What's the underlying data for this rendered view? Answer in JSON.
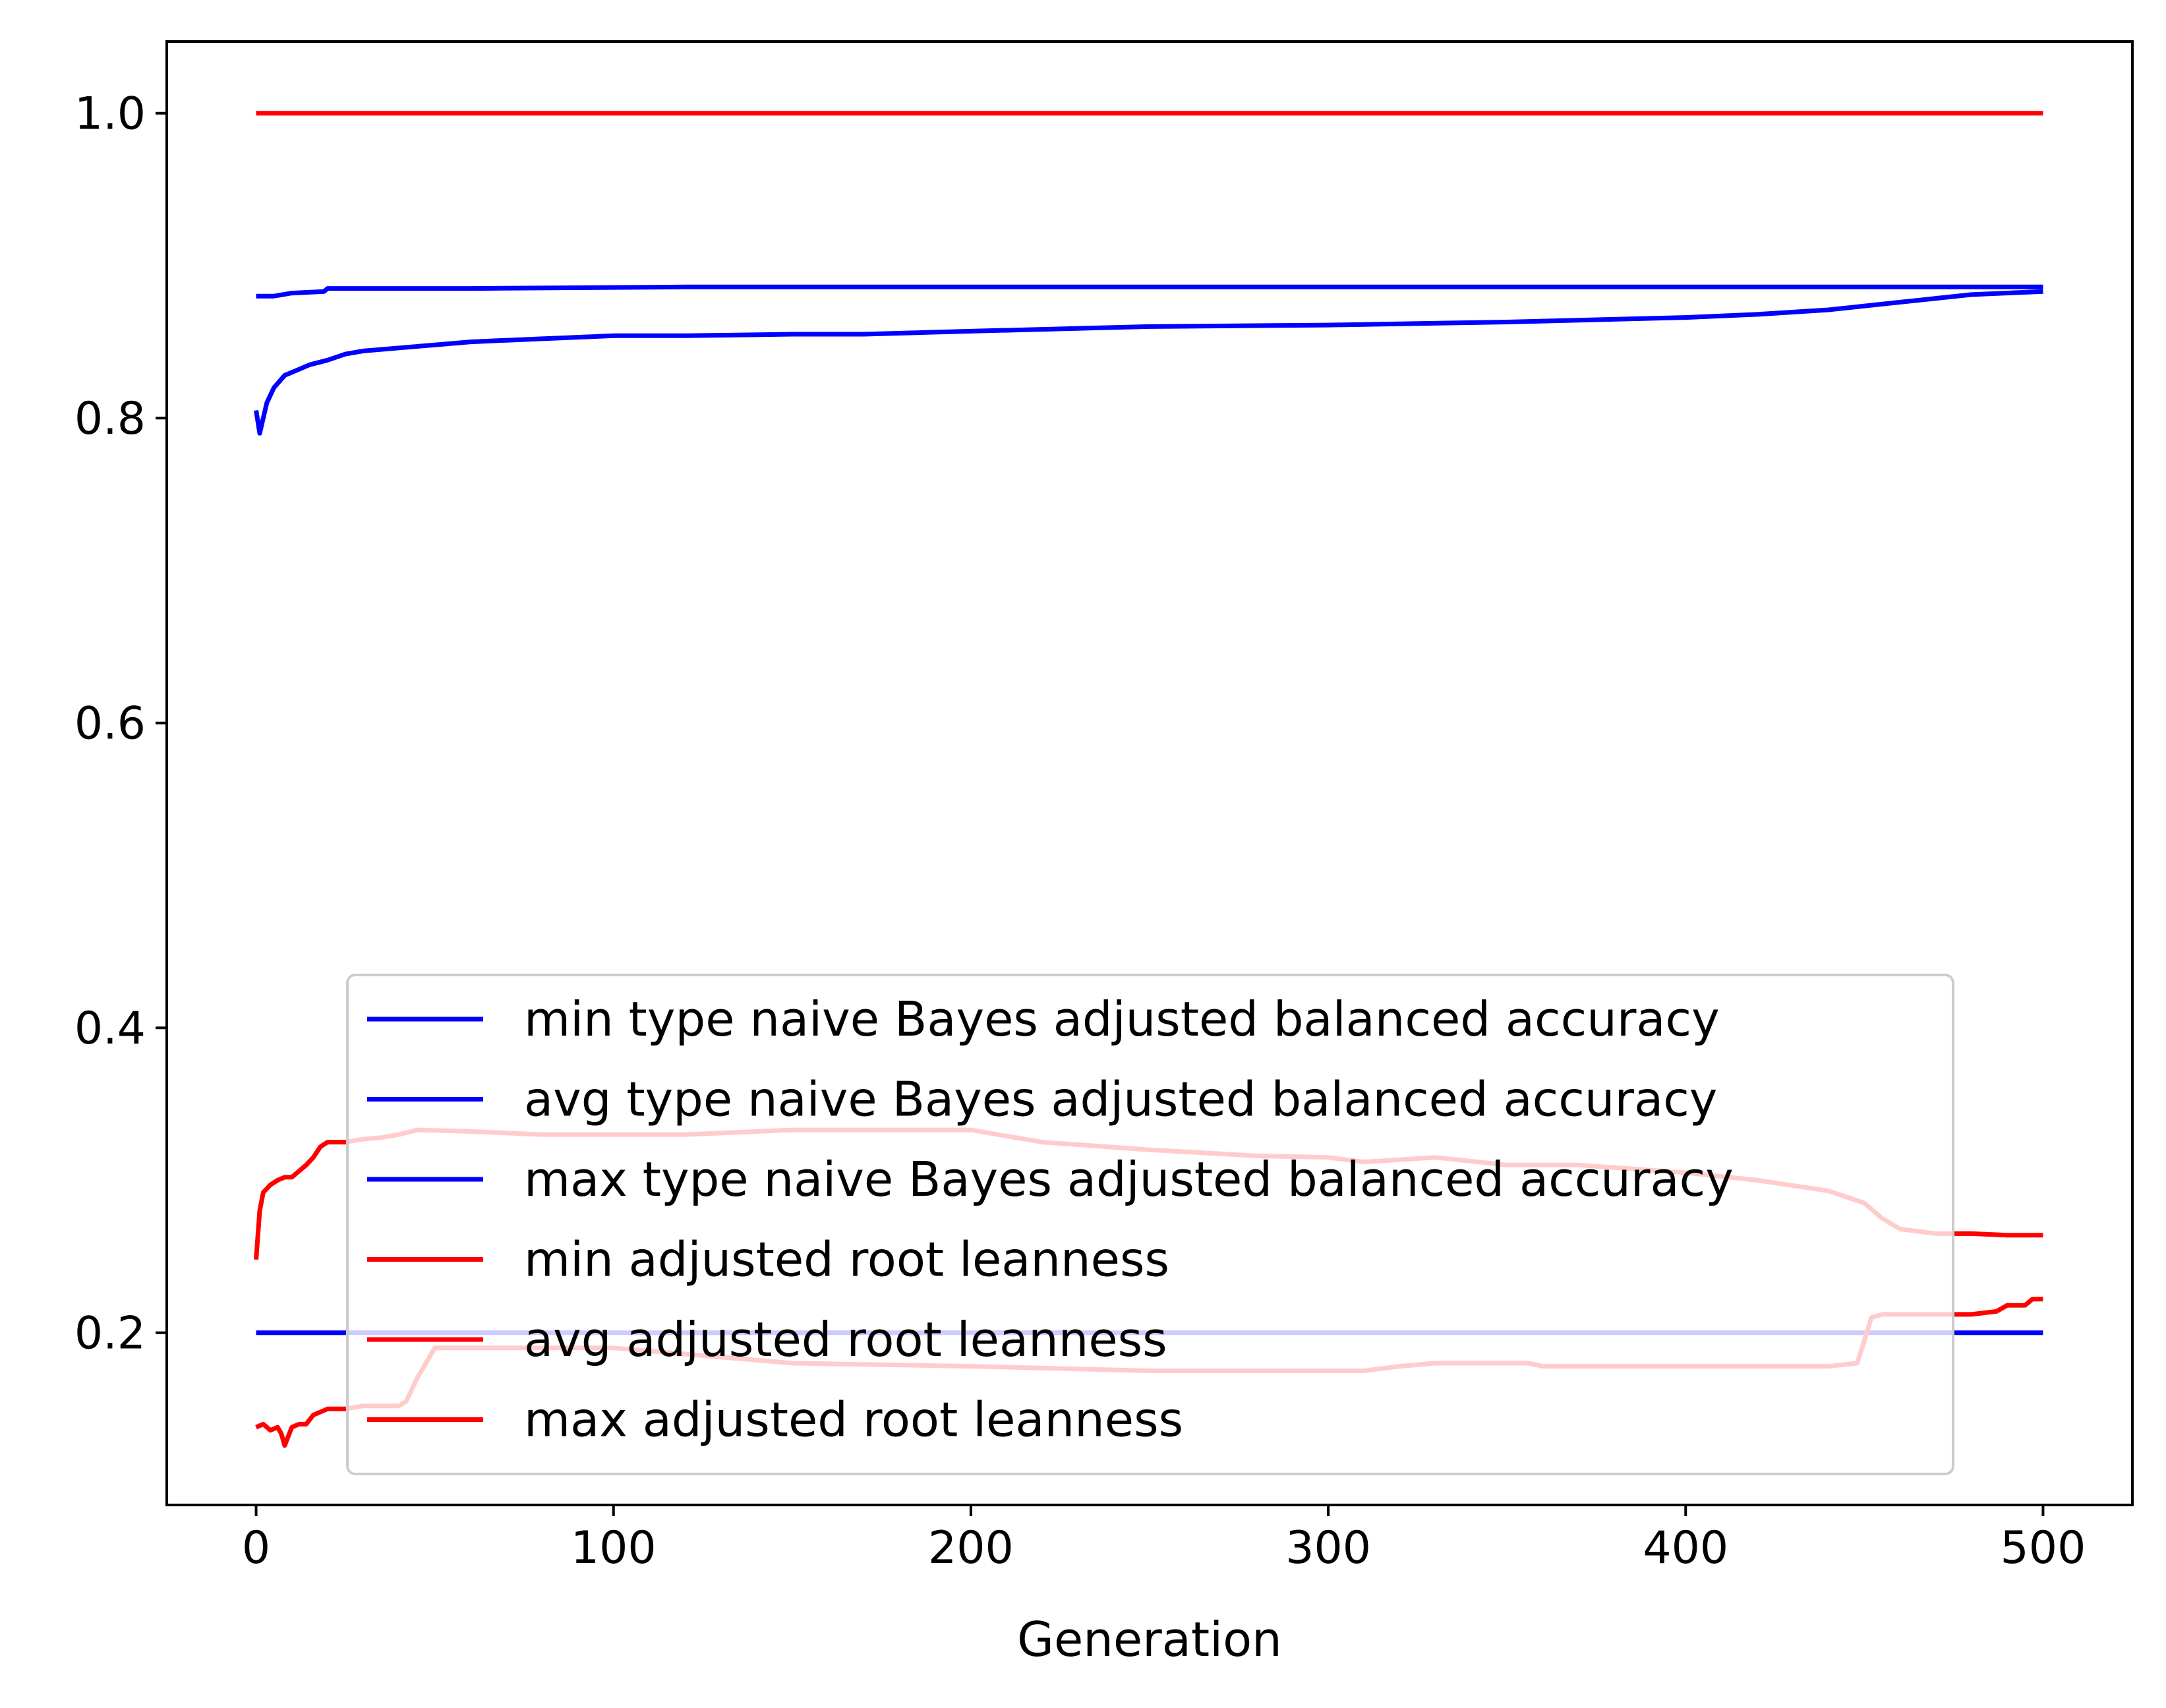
{
  "chart_data": {
    "type": "line",
    "title": "",
    "xlabel": "Generation",
    "ylabel": "",
    "xlim": [
      -25,
      525
    ],
    "ylim": [
      0.087,
      1.047
    ],
    "xticks": [
      "0",
      "100",
      "200",
      "300",
      "400",
      "500"
    ],
    "yticks": [
      "0.2",
      "0.4",
      "0.6",
      "0.8",
      "1.0"
    ],
    "grid": false,
    "legend_position": "lower-center",
    "series": [
      {
        "name": "min type naive Bayes adjusted balanced accuracy",
        "color": "#0000ff",
        "x": [
          0,
          500
        ],
        "y": [
          0.2,
          0.2
        ]
      },
      {
        "name": "avg type naive Bayes adjusted balanced accuracy",
        "color": "#0000ff",
        "x": [
          0,
          1,
          2,
          3,
          5,
          8,
          10,
          15,
          20,
          25,
          30,
          40,
          50,
          60,
          70,
          80,
          90,
          100,
          120,
          150,
          170,
          200,
          250,
          300,
          350,
          400,
          420,
          440,
          460,
          480,
          500
        ],
        "y": [
          0.805,
          0.79,
          0.8,
          0.81,
          0.82,
          0.828,
          0.83,
          0.835,
          0.838,
          0.842,
          0.844,
          0.846,
          0.848,
          0.85,
          0.851,
          0.852,
          0.853,
          0.854,
          0.854,
          0.855,
          0.855,
          0.857,
          0.86,
          0.861,
          0.863,
          0.866,
          0.868,
          0.871,
          0.876,
          0.881,
          0.883
        ]
      },
      {
        "name": "max type naive Bayes adjusted balanced accuracy",
        "color": "#0000ff",
        "x": [
          0,
          5,
          10,
          19,
          20,
          60,
          120,
          200,
          300,
          400,
          500
        ],
        "y": [
          0.88,
          0.88,
          0.882,
          0.883,
          0.885,
          0.885,
          0.886,
          0.886,
          0.886,
          0.886,
          0.886
        ]
      },
      {
        "name": "min adjusted root leanness",
        "color": "#ff0000",
        "x": [
          0,
          2,
          4,
          6,
          7,
          8,
          9,
          10,
          12,
          14,
          16,
          18,
          20,
          25,
          30,
          35,
          40,
          42,
          45,
          50,
          60,
          100,
          150,
          200,
          250,
          300,
          310,
          320,
          330,
          356,
          360,
          400,
          440,
          448,
          450,
          452,
          455,
          460,
          470,
          480,
          487,
          490,
          495,
          497,
          500
        ],
        "y": [
          0.138,
          0.14,
          0.136,
          0.138,
          0.134,
          0.126,
          0.132,
          0.138,
          0.14,
          0.14,
          0.146,
          0.148,
          0.15,
          0.15,
          0.152,
          0.152,
          0.152,
          0.155,
          0.17,
          0.19,
          0.19,
          0.19,
          0.18,
          0.178,
          0.175,
          0.175,
          0.175,
          0.178,
          0.18,
          0.18,
          0.178,
          0.178,
          0.178,
          0.18,
          0.195,
          0.21,
          0.212,
          0.212,
          0.212,
          0.212,
          0.214,
          0.218,
          0.218,
          0.222,
          0.222
        ]
      },
      {
        "name": "avg adjusted root leanness",
        "color": "#ff0000",
        "x": [
          0,
          1,
          2,
          4,
          6,
          8,
          10,
          12,
          14,
          16,
          18,
          20,
          25,
          30,
          35,
          40,
          45,
          60,
          80,
          100,
          120,
          150,
          180,
          200,
          220,
          250,
          280,
          300,
          310,
          330,
          350,
          370,
          400,
          420,
          440,
          450,
          455,
          460,
          470,
          480,
          490,
          500
        ],
        "y": [
          0.248,
          0.28,
          0.292,
          0.297,
          0.3,
          0.302,
          0.302,
          0.306,
          0.31,
          0.315,
          0.322,
          0.325,
          0.325,
          0.327,
          0.328,
          0.33,
          0.333,
          0.332,
          0.33,
          0.33,
          0.33,
          0.333,
          0.333,
          0.333,
          0.325,
          0.32,
          0.316,
          0.315,
          0.312,
          0.315,
          0.31,
          0.31,
          0.305,
          0.3,
          0.293,
          0.285,
          0.275,
          0.268,
          0.265,
          0.265,
          0.264,
          0.264
        ]
      },
      {
        "name": "max adjusted root leanness",
        "color": "#ff0000",
        "x": [
          0,
          500
        ],
        "y": [
          1.0,
          1.0
        ]
      }
    ]
  }
}
